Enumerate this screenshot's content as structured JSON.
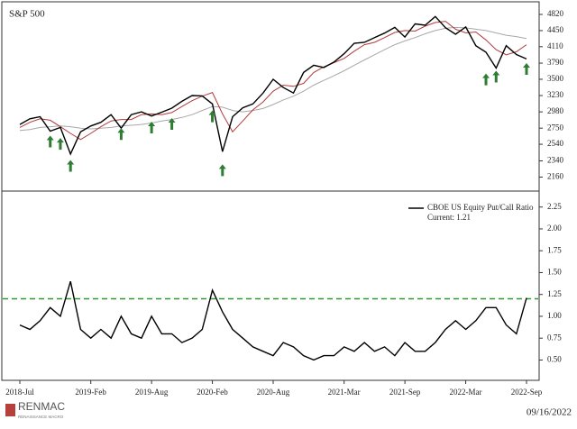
{
  "chart_data": [
    {
      "type": "line",
      "title": "S&P 500",
      "log": true,
      "x": [
        "2018-07",
        "2018-08",
        "2018-09",
        "2018-10",
        "2018-11",
        "2018-12",
        "2019-01",
        "2019-02",
        "2019-03",
        "2019-04",
        "2019-05",
        "2019-06",
        "2019-07",
        "2019-08",
        "2019-09",
        "2019-10",
        "2019-11",
        "2019-12",
        "2020-01",
        "2020-02",
        "2020-03",
        "2020-04",
        "2020-05",
        "2020-06",
        "2020-07",
        "2020-08",
        "2020-09",
        "2020-10",
        "2020-11",
        "2020-12",
        "2021-01",
        "2021-02",
        "2021-03",
        "2021-04",
        "2021-05",
        "2021-06",
        "2021-07",
        "2021-08",
        "2021-09",
        "2021-10",
        "2021-11",
        "2021-12",
        "2022-01",
        "2022-02",
        "2022-03",
        "2022-04",
        "2022-05",
        "2022-06",
        "2022-07",
        "2022-08",
        "2022-09"
      ],
      "series": [
        {
          "color": "#000000",
          "values": [
            2800,
            2880,
            2910,
            2710,
            2760,
            2420,
            2700,
            2780,
            2830,
            2940,
            2750,
            2940,
            2980,
            2920,
            2975,
            3035,
            3140,
            3230,
            3225,
            3100,
            2450,
            2910,
            3040,
            3100,
            3270,
            3500,
            3360,
            3270,
            3620,
            3750,
            3710,
            3810,
            3970,
            4180,
            4200,
            4300,
            4395,
            4520,
            4310,
            4600,
            4570,
            4770,
            4515,
            4370,
            4530,
            4130,
            4000,
            3700,
            4130,
            3955,
            3870
          ]
        },
        {
          "color": "#b03a3a",
          "values": [
            2760,
            2830,
            2880,
            2860,
            2770,
            2680,
            2600,
            2680,
            2770,
            2850,
            2870,
            2870,
            2940,
            2950,
            2940,
            2970,
            3060,
            3150,
            3220,
            3280,
            2950,
            2700,
            2850,
            3010,
            3130,
            3300,
            3400,
            3380,
            3430,
            3620,
            3720,
            3800,
            3880,
            4020,
            4150,
            4200,
            4300,
            4410,
            4450,
            4440,
            4550,
            4630,
            4660,
            4480,
            4400,
            4420,
            4250,
            4050,
            3950,
            4010,
            4150
          ]
        },
        {
          "color": "#a8a8a8",
          "values": [
            2720,
            2730,
            2760,
            2770,
            2780,
            2770,
            2750,
            2740,
            2750,
            2760,
            2780,
            2790,
            2800,
            2820,
            2850,
            2870,
            2900,
            2940,
            3000,
            3060,
            3050,
            3000,
            2980,
            3000,
            3030,
            3090,
            3160,
            3220,
            3300,
            3400,
            3480,
            3560,
            3650,
            3750,
            3850,
            3950,
            4050,
            4150,
            4230,
            4300,
            4380,
            4450,
            4500,
            4520,
            4510,
            4480,
            4450,
            4400,
            4350,
            4320,
            4280
          ]
        }
      ],
      "markers": {
        "color": "#2e7d32",
        "x": [
          "2018-10",
          "2018-11",
          "2018-12",
          "2019-05",
          "2019-08",
          "2019-10",
          "2020-02",
          "2020-03",
          "2022-05",
          "2022-06",
          "2022-09"
        ],
        "values": [
          2650,
          2620,
          2350,
          2750,
          2840,
          2890,
          3000,
          2300,
          3600,
          3650,
          3790
        ]
      },
      "ylim": [
        2080,
        4950
      ],
      "yticks": [
        2160,
        2340,
        2540,
        2750,
        2980,
        3230,
        3500,
        3790,
        4110,
        4450,
        4820
      ]
    },
    {
      "type": "line",
      "x": [
        "2018-07",
        "2018-08",
        "2018-09",
        "2018-10",
        "2018-11",
        "2018-12",
        "2019-01",
        "2019-02",
        "2019-03",
        "2019-04",
        "2019-05",
        "2019-06",
        "2019-07",
        "2019-08",
        "2019-09",
        "2019-10",
        "2019-11",
        "2019-12",
        "2020-01",
        "2020-02",
        "2020-03",
        "2020-04",
        "2020-05",
        "2020-06",
        "2020-07",
        "2020-08",
        "2020-09",
        "2020-10",
        "2020-11",
        "2020-12",
        "2021-01",
        "2021-02",
        "2021-03",
        "2021-04",
        "2021-05",
        "2021-06",
        "2021-07",
        "2021-08",
        "2021-09",
        "2021-10",
        "2021-11",
        "2021-12",
        "2022-01",
        "2022-02",
        "2022-03",
        "2022-04",
        "2022-05",
        "2022-06",
        "2022-07",
        "2022-08",
        "2022-09"
      ],
      "series": [
        {
          "name": "CBOE US Equity Put/Call Ratio",
          "color": "#000000",
          "values": [
            0.9,
            0.85,
            0.95,
            1.1,
            1.0,
            1.4,
            0.85,
            0.75,
            0.85,
            0.75,
            1.0,
            0.8,
            0.75,
            1.0,
            0.8,
            0.8,
            0.7,
            0.75,
            0.85,
            1.3,
            1.05,
            0.85,
            0.75,
            0.65,
            0.6,
            0.55,
            0.7,
            0.65,
            0.55,
            0.5,
            0.55,
            0.55,
            0.65,
            0.6,
            0.7,
            0.6,
            0.65,
            0.55,
            0.7,
            0.6,
            0.6,
            0.7,
            0.85,
            0.95,
            0.85,
            0.95,
            1.1,
            1.1,
            0.9,
            0.8,
            1.21
          ]
        }
      ],
      "annotation": "Current: 1.21",
      "reference_line": {
        "value": 1.2,
        "color": "#2e9b2e"
      },
      "ylim": [
        0.35,
        2.35
      ],
      "yticks": [
        {
          "value": 0.5,
          "label": "0.50"
        },
        {
          "value": 0.75,
          "label": "0.75"
        },
        {
          "value": 1,
          "label": "1.00"
        },
        {
          "value": 1.25,
          "label": "1.25"
        },
        {
          "value": 1.5,
          "label": "1.50"
        },
        {
          "value": 1.75,
          "label": "1.75"
        },
        {
          "value": 2,
          "label": "2.00"
        },
        {
          "value": 2.25,
          "label": "2.25"
        }
      ],
      "xticks": [
        {
          "value": "2018-07",
          "label": "2018-Jul"
        },
        {
          "value": "2019-02",
          "label": "2019-Feb"
        },
        {
          "value": "2019-08",
          "label": "2019-Aug"
        },
        {
          "value": "2020-02",
          "label": "2020-Feb"
        },
        {
          "value": "2020-08",
          "label": "2020-Aug"
        },
        {
          "value": "2021-03",
          "label": "2021-Mar"
        },
        {
          "value": "2021-09",
          "label": "2021-Sep"
        },
        {
          "value": "2022-03",
          "label": "2022-Mar"
        },
        {
          "value": "2022-09",
          "label": "2022-Sep"
        }
      ]
    }
  ],
  "footer": {
    "brand": "RENMAC",
    "tagline": "RENAISSANCE MACRO",
    "date": "09/16/2022"
  }
}
